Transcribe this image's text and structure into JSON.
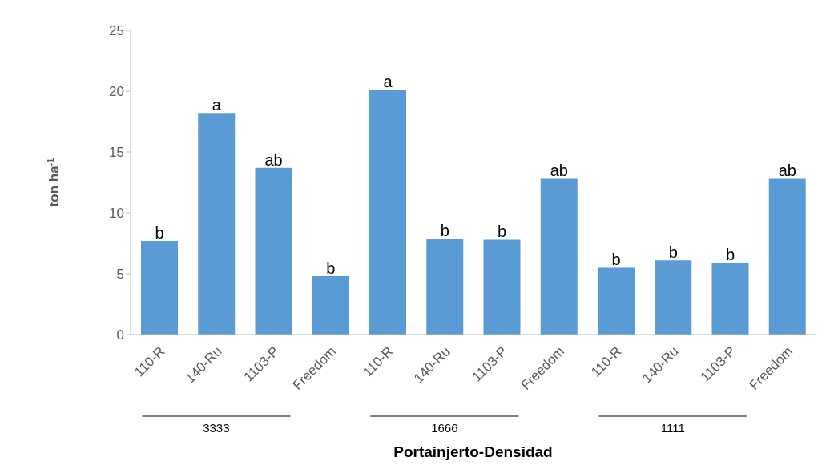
{
  "chart_data": {
    "type": "bar",
    "xlabel": "Portainjerto-Densidad",
    "ylabel": "ton ha$^{-1}$",
    "categories": [
      "110-R",
      "140-Ru",
      "1103-P",
      "Freedom",
      "110-R",
      "140-Ru",
      "1103-P",
      "Freedom",
      "110-R",
      "140-Ru",
      "1103-P",
      "Freedom"
    ],
    "values": [
      7.7,
      18.2,
      13.7,
      4.8,
      20.1,
      7.9,
      7.8,
      12.8,
      5.5,
      6.1,
      5.9,
      12.8
    ],
    "value_labels": [
      "b",
      "a",
      "ab",
      "b",
      "a",
      "b",
      "b",
      "ab",
      "b",
      "b",
      "b",
      "ab"
    ],
    "color": "#5b9bd5",
    "ylim": [
      0,
      25
    ],
    "yticks": [
      0,
      5,
      10,
      15,
      20,
      25
    ],
    "annotations": [
      "3333",
      "1666",
      "1111"
    ]
  }
}
